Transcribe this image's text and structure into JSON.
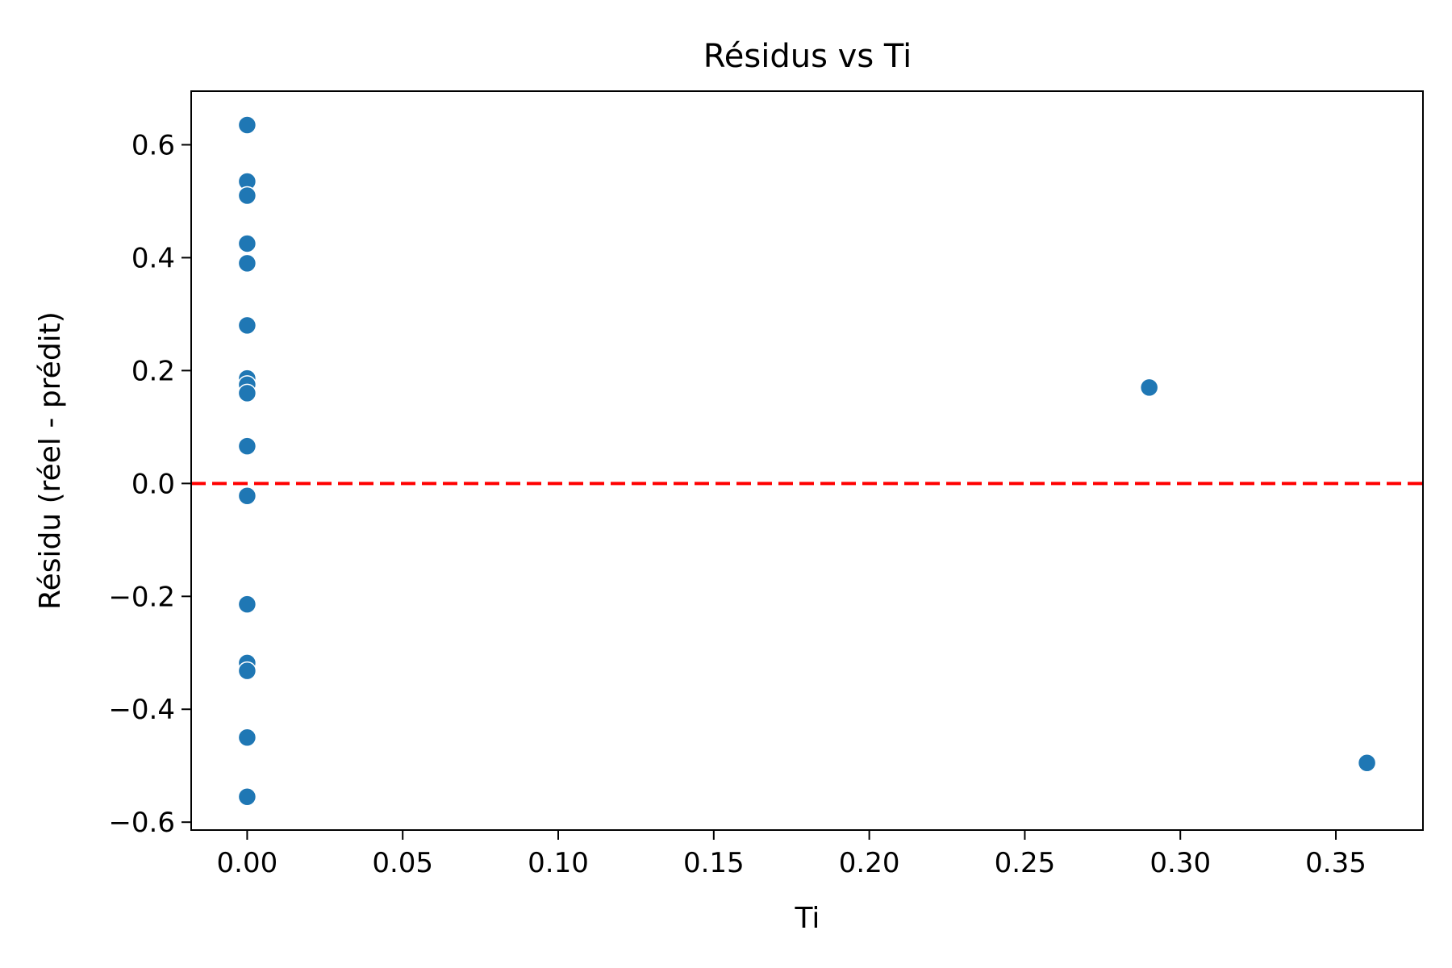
{
  "chart_data": {
    "type": "scatter",
    "title": "Résidus vs Ti",
    "xlabel": "Ti",
    "ylabel": "Résidu (réel - prédit)",
    "xlim": [
      -0.018,
      0.378
    ],
    "ylim": [
      -0.614,
      0.695
    ],
    "xticks": [
      0.0,
      0.05,
      0.1,
      0.15,
      0.2,
      0.25,
      0.3,
      0.35
    ],
    "xtick_labels": [
      "0.00",
      "0.05",
      "0.10",
      "0.15",
      "0.20",
      "0.25",
      "0.30",
      "0.35"
    ],
    "yticks": [
      -0.6,
      -0.4,
      -0.2,
      0.0,
      0.2,
      0.4,
      0.6
    ],
    "ytick_labels": [
      "−0.6",
      "−0.4",
      "−0.2",
      "0.0",
      "0.2",
      "0.4",
      "0.6"
    ],
    "grid": false,
    "reference_line": {
      "y": 0.0,
      "style": "dashed",
      "color": "#ff0000"
    },
    "marker_color": "#1f77b4",
    "points": [
      {
        "x": 0.0,
        "y": 0.635
      },
      {
        "x": 0.0,
        "y": 0.535
      },
      {
        "x": 0.0,
        "y": 0.51
      },
      {
        "x": 0.0,
        "y": 0.425
      },
      {
        "x": 0.0,
        "y": 0.39
      },
      {
        "x": 0.0,
        "y": 0.28
      },
      {
        "x": 0.0,
        "y": 0.186
      },
      {
        "x": 0.0,
        "y": 0.175
      },
      {
        "x": 0.0,
        "y": 0.16
      },
      {
        "x": 0.0,
        "y": 0.066
      },
      {
        "x": 0.0,
        "y": -0.022
      },
      {
        "x": 0.0,
        "y": -0.214
      },
      {
        "x": 0.0,
        "y": -0.318
      },
      {
        "x": 0.0,
        "y": -0.332
      },
      {
        "x": 0.0,
        "y": -0.45
      },
      {
        "x": 0.0,
        "y": -0.555
      },
      {
        "x": 0.29,
        "y": 0.17
      },
      {
        "x": 0.36,
        "y": -0.495
      }
    ]
  }
}
